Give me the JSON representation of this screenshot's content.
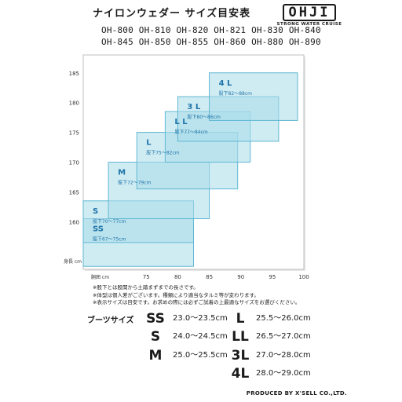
{
  "title": "ナイロンウェダー サイズ目安表",
  "logo": {
    "mark": "OHJI",
    "sub": "STRONG WATER CRUISE"
  },
  "models": [
    [
      "OH-800",
      "OH-810",
      "OH-820",
      "OH-821",
      "OH-830",
      "OH-840"
    ],
    [
      "OH-845",
      "OH-850",
      "OH-855",
      "OH-860",
      "OH-880",
      "OH-890"
    ]
  ],
  "chart_data": {
    "type": "table",
    "xlabel": "胴囲 cm",
    "ylabel": "身長 cm",
    "xlim": [
      65,
      100
    ],
    "ylim": [
      152,
      188
    ],
    "x_ticks": [
      75,
      80,
      85,
      90,
      95,
      100
    ],
    "y_ticks": [
      160,
      165,
      170,
      175,
      180,
      185
    ],
    "grid": false,
    "boxes": [
      {
        "size": "SS",
        "inseam": "股下67〜75cm",
        "x": [
          65,
          82.5
        ],
        "y": [
          152.5,
          160.5
        ]
      },
      {
        "size": "S",
        "inseam": "股下70〜77cm",
        "x": [
          65,
          82.5
        ],
        "y": [
          156.5,
          163.5
        ]
      },
      {
        "size": "M",
        "inseam": "股下72〜79cm",
        "x": [
          69,
          85
        ],
        "y": [
          160.5,
          170
        ]
      },
      {
        "size": "L",
        "inseam": "股下75〜82cm",
        "x": [
          73.5,
          89.5
        ],
        "y": [
          165.5,
          175
        ]
      },
      {
        "size": "L L",
        "inseam": "股下77〜84cm",
        "x": [
          78,
          91.5
        ],
        "y": [
          170,
          178.5
        ]
      },
      {
        "size": "3 L",
        "inseam": "股下80〜86cm",
        "x": [
          80,
          96
        ],
        "y": [
          173.5,
          181
        ]
      },
      {
        "size": "4 L",
        "inseam": "股下82〜88cm",
        "x": [
          85,
          99
        ],
        "y": [
          177,
          185
        ]
      }
    ]
  },
  "notes": [
    "※股下とは股関から土踏まずまでの長さです。",
    "※体型は個人差がございます。種類により適当なタルミ等が変わります。",
    "※表示サイズは目安です。お求めの際には必ずご試着の上最適なサイズをお選びください。"
  ],
  "boots": {
    "label": "ブーツサイズ",
    "left": [
      {
        "size": "SS",
        "range": "23.0〜23.5cm"
      },
      {
        "size": "S",
        "range": "24.0〜24.5cm"
      },
      {
        "size": "M",
        "range": "25.0〜25.5cm"
      }
    ],
    "right": [
      {
        "size": "L",
        "range": "25.5〜26.0cm"
      },
      {
        "size": "LL",
        "range": "26.5〜27.0cm"
      },
      {
        "size": "3L",
        "range": "27.0〜28.0cm"
      },
      {
        "size": "4L",
        "range": "28.0〜29.0cm"
      }
    ]
  },
  "credit": "PRODUCED BY X'SELL CO.,LTD.",
  "colors": {
    "box_fill": "#a9dcea",
    "box_stroke": "#5fb7d3",
    "label": "#1f74a8",
    "frame": "#bfbfbf"
  }
}
